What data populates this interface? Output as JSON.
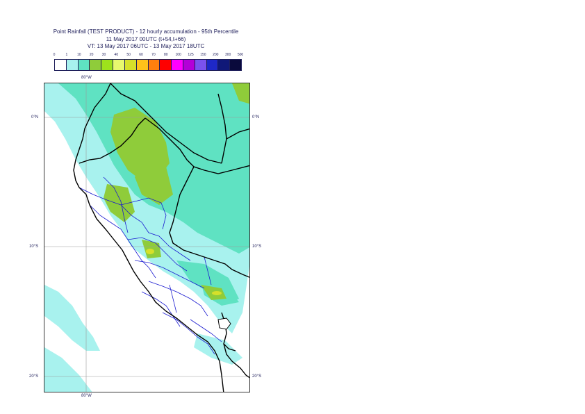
{
  "title": {
    "line1": "Point Rainfall (TEST PRODUCT) - 12 hourly accumulation - 95th Percentile",
    "line2": "11 May 2017 00UTC (t+54,t+66)",
    "line3": "VT: 13 May 2017 06UTC - 13 May 2017 18UTC"
  },
  "legend": {
    "ticks": [
      "0",
      "1",
      "10",
      "20",
      "30",
      "40",
      "50",
      "60",
      "70",
      "80",
      "100",
      "125",
      "150",
      "200",
      "300",
      "500"
    ],
    "colors": [
      "#ffffff",
      "#a8f2ee",
      "#5fe2c2",
      "#8fcc3a",
      "#9ee21c",
      "#e8f86e",
      "#d6e02a",
      "#ffc21a",
      "#ff7f0e",
      "#ff0000",
      "#ff00ff",
      "#b400d8",
      "#7b52ee",
      "#1e28c8",
      "#101878",
      "#0a0a3c"
    ]
  },
  "map": {
    "top_lon_label": "80°W",
    "bottom_lon_label": "80°W",
    "lat_labels": [
      "0°N",
      "10°S",
      "20°S"
    ],
    "colors": {
      "low": "#a8f2ee",
      "mid": "#5fe2c2",
      "high": "#8fcc3a",
      "peak": "#d6e02a",
      "country_border": "#000000",
      "region_border": "#1a1ad0",
      "grid": "#9a9a9a"
    }
  }
}
